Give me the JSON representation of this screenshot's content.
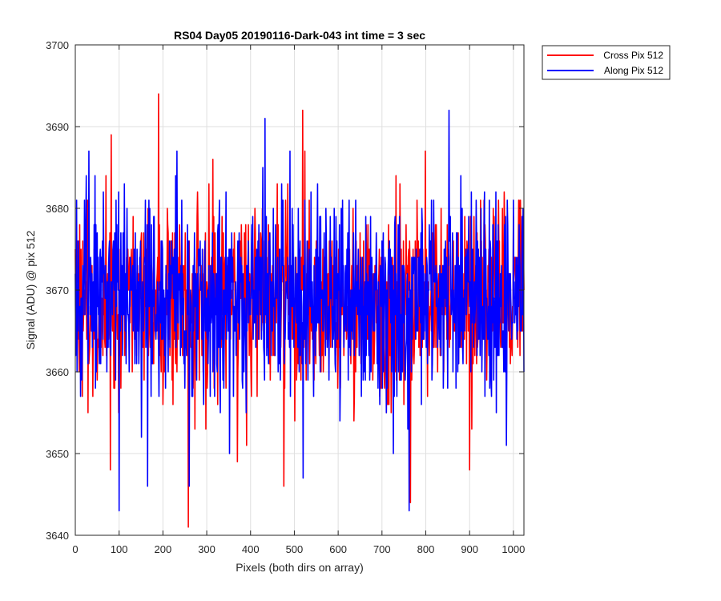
{
  "chart_data": {
    "type": "line",
    "title": "RS04 Day05 20190116-Dark-043 int time = 3 sec",
    "xlabel": "Pixels (both dirs on array)",
    "ylabel": "Signal (ADU) @ pix 512",
    "xlim": [
      0,
      1024
    ],
    "ylim": [
      3640,
      3700
    ],
    "xticks": [
      0,
      100,
      200,
      300,
      400,
      500,
      600,
      700,
      800,
      900,
      1000
    ],
    "yticks": [
      3640,
      3650,
      3660,
      3670,
      3680,
      3690,
      3700
    ],
    "grid": true,
    "legend_position": "outside top-right",
    "series": [
      {
        "name": "Cross Pix 512",
        "color": "#ff0000",
        "x_start": 0,
        "x_step": 1,
        "summary": {
          "mean": 3669,
          "min": 3641,
          "max": 3694,
          "approx_std": 6
        },
        "notable_points": [
          [
            190,
            3694
          ],
          [
            258,
            3641
          ],
          [
            476,
            3646
          ],
          [
            519,
            3692
          ],
          [
            370,
            3649
          ],
          [
            80,
            3648
          ],
          [
            82,
            3689
          ],
          [
            765,
            3644
          ],
          [
            900,
            3648
          ]
        ]
      },
      {
        "name": "Along Pix 512",
        "color": "#0000ff",
        "x_start": 0,
        "x_step": 1,
        "summary": {
          "mean": 3669,
          "min": 3643,
          "max": 3692,
          "approx_std": 6
        },
        "notable_points": [
          [
            100,
            3643
          ],
          [
            260,
            3646
          ],
          [
            165,
            3646
          ],
          [
            520,
            3647
          ],
          [
            762,
            3643
          ],
          [
            853,
            3692
          ],
          [
            433,
            3691
          ],
          [
            490,
            3687
          ],
          [
            31,
            3687
          ],
          [
            232,
            3687
          ]
        ]
      }
    ]
  }
}
